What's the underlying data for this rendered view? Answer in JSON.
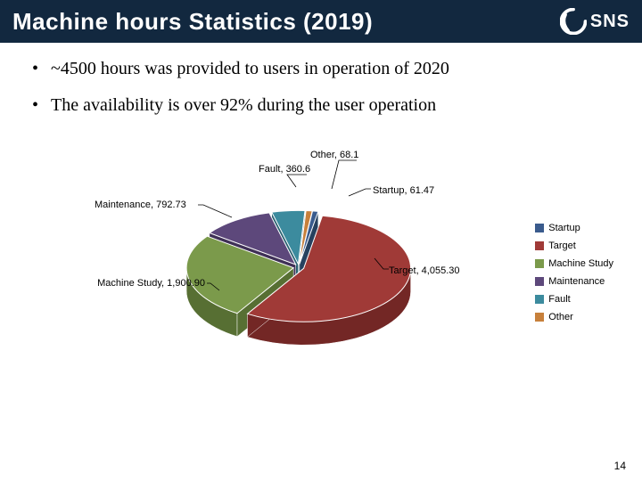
{
  "title": "Machine hours Statistics (2019)",
  "logo": {
    "text": "SNS"
  },
  "bullets": [
    "~4500 hours was provided to users in operation of 2020",
    "The availability is over 92% during the user operation"
  ],
  "chart": {
    "type": "pie",
    "background_color": "#ffffff",
    "label_fontsize": 11,
    "legend_fontsize": 11,
    "series": [
      {
        "name": "Startup",
        "value": 61.47,
        "label": "Startup, 61.47",
        "color": "#3a5b8d",
        "color_dark": "#26415f"
      },
      {
        "name": "Target",
        "value": 4055.3,
        "label": "Target, 4,055.30",
        "color": "#a03a37",
        "color_dark": "#732725"
      },
      {
        "name": "Machine Study",
        "value": 1900.9,
        "label": "Machine Study, 1,900.90",
        "color": "#7b9a4b",
        "color_dark": "#576f33"
      },
      {
        "name": "Maintenance",
        "value": 792.73,
        "label": "Maintenance, 792.73",
        "color": "#5d487b",
        "color_dark": "#3f3056"
      },
      {
        "name": "Fault",
        "value": 360.6,
        "label": "Fault, 360.6",
        "color": "#3c8b9e",
        "color_dark": "#2a6271"
      },
      {
        "name": "Other",
        "value": 68.1,
        "label": "Other, 68.1",
        "color": "#c7803b",
        "color_dark": "#8f5a28"
      }
    ],
    "legend_order": [
      "Startup",
      "Target",
      "Machine Study",
      "Maintenance",
      "Fault",
      "Other"
    ]
  },
  "page_number": "14"
}
